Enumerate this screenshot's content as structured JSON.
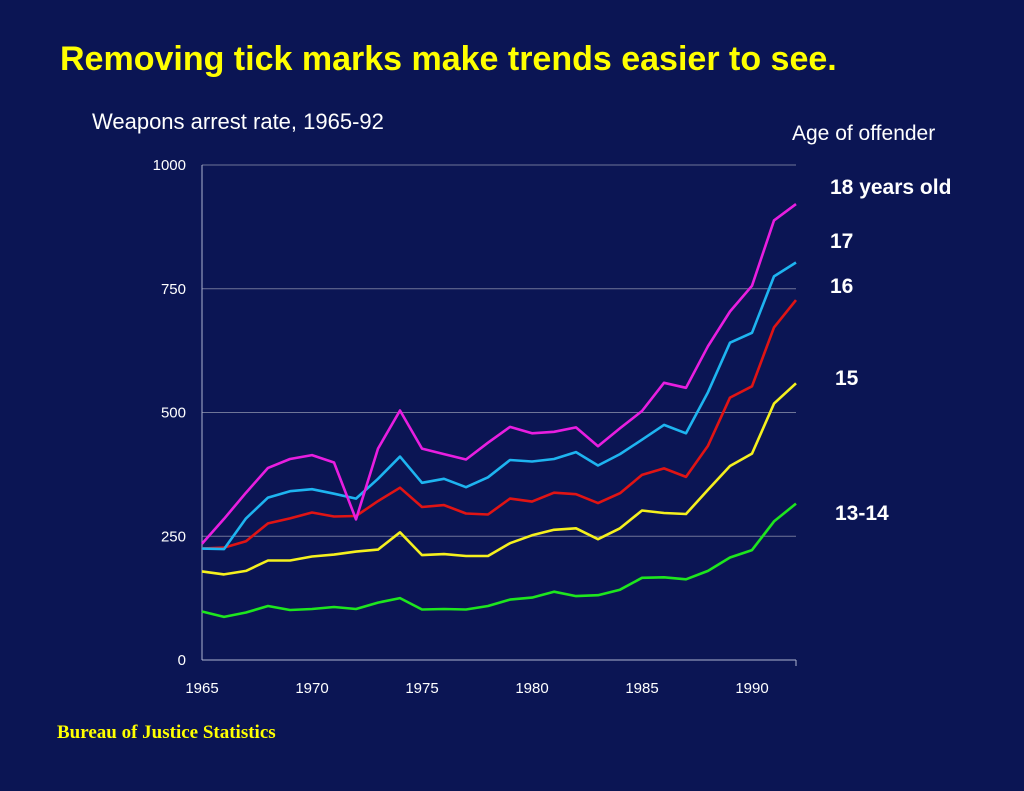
{
  "slide_title": "Removing tick marks make trends easier to see.",
  "source": "Bureau of Justice Statistics",
  "colors": {
    "background": "#0b1554",
    "title": "#ffff00",
    "axis": "#aeb4cf",
    "grid": "#6f7598"
  },
  "chart_data": {
    "type": "line",
    "title": "Weapons arrest rate, 1965-92",
    "xlabel": "",
    "ylabel": "",
    "xlim": [
      1965,
      1992
    ],
    "ylim": [
      0,
      1000
    ],
    "x_ticks": [
      1965,
      1970,
      1975,
      1980,
      1985,
      1990
    ],
    "y_ticks": [
      0,
      250,
      500,
      750,
      1000
    ],
    "grid": "horizontal",
    "legend_title": "Age of offender",
    "legend_placement": "right",
    "x": [
      1965,
      1966,
      1967,
      1968,
      1969,
      1970,
      1971,
      1972,
      1973,
      1974,
      1975,
      1976,
      1977,
      1978,
      1979,
      1980,
      1981,
      1982,
      1983,
      1984,
      1985,
      1986,
      1987,
      1988,
      1989,
      1990,
      1991,
      1992
    ],
    "series": [
      {
        "name": "18 years old",
        "color": "#e81ee0",
        "values": [
          235,
          285,
          338,
          388,
          406,
          414,
          399,
          284,
          427,
          504,
          427,
          416,
          405,
          439,
          471,
          458,
          461,
          470,
          432,
          468,
          503,
          560,
          550,
          634,
          704,
          756,
          888,
          921
        ]
      },
      {
        "name": "17",
        "color": "#1eb4f0",
        "values": [
          225,
          224,
          286,
          328,
          341,
          345,
          336,
          326,
          366,
          411,
          358,
          366,
          349,
          369,
          404,
          401,
          406,
          420,
          393,
          416,
          445,
          475,
          458,
          541,
          641,
          661,
          775,
          803
        ]
      },
      {
        "name": "16",
        "color": "#e01414",
        "values": [
          225,
          227,
          240,
          276,
          286,
          298,
          290,
          291,
          321,
          348,
          309,
          313,
          296,
          294,
          326,
          320,
          338,
          335,
          317,
          337,
          374,
          387,
          370,
          433,
          530,
          553,
          672,
          727
        ]
      },
      {
        "name": "15",
        "color": "#f5f01e",
        "values": [
          179,
          173,
          180,
          201,
          201,
          209,
          213,
          219,
          223,
          258,
          212,
          214,
          210,
          210,
          236,
          252,
          263,
          266,
          244,
          266,
          302,
          297,
          295,
          344,
          392,
          417,
          518,
          559
        ]
      },
      {
        "name": "13-14",
        "color": "#1ee61e",
        "values": [
          98,
          87,
          96,
          109,
          101,
          103,
          107,
          103,
          116,
          125,
          102,
          103,
          102,
          109,
          122,
          126,
          138,
          129,
          131,
          142,
          166,
          167,
          163,
          180,
          207,
          222,
          280,
          316
        ]
      }
    ]
  }
}
